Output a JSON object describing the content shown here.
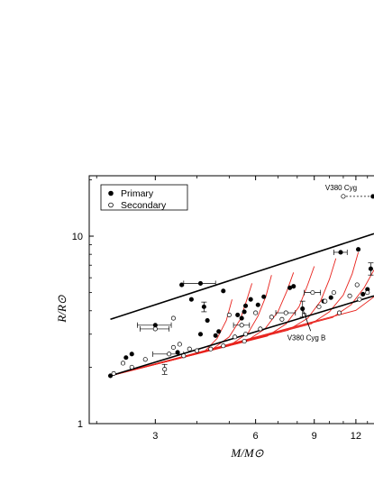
{
  "chart_data": {
    "type": "scatter",
    "x_scale": "log",
    "y_scale": "log",
    "xlabel": "M/M⊙",
    "ylabel": "R/R⊙",
    "xlim": [
      1.9,
      13.6
    ],
    "ylim": [
      1,
      21
    ],
    "x_ticks": [
      3,
      6,
      9,
      12
    ],
    "y_ticks": [
      1,
      10
    ],
    "legend": {
      "placement": "top-left",
      "entries": [
        "Primary",
        "Secondary"
      ]
    },
    "annotations": [
      {
        "text": "V380 Cyg B",
        "x": 9.0,
        "y": 3.05,
        "arrow_to": [
          8.3,
          4.1
        ]
      },
      {
        "text": "V380 Cyg",
        "x": 11.0,
        "y": 16.3
      }
    ],
    "boundary_curves": [
      {
        "name": "upper",
        "points": [
          [
            2.2,
            3.6
          ],
          [
            13.6,
            10.3
          ]
        ]
      },
      {
        "name": "lower",
        "points": [
          [
            2.2,
            1.8
          ],
          [
            13.6,
            4.8
          ]
        ]
      }
    ],
    "isochrones": [
      {
        "points": [
          [
            2.2,
            1.8
          ],
          [
            4.2,
            2.41
          ],
          [
            4.6,
            2.85
          ],
          [
            4.9,
            3.55
          ],
          [
            5.1,
            4.6
          ]
        ]
      },
      {
        "points": [
          [
            2.2,
            1.8
          ],
          [
            4.4,
            2.46
          ],
          [
            5.0,
            2.9
          ],
          [
            5.4,
            3.6
          ],
          [
            5.65,
            4.6
          ],
          [
            5.85,
            5.6
          ]
        ]
      },
      {
        "points": [
          [
            2.2,
            1.8
          ],
          [
            5.0,
            2.6
          ],
          [
            5.7,
            3.05
          ],
          [
            6.1,
            3.75
          ],
          [
            6.45,
            4.8
          ],
          [
            6.7,
            6.2
          ]
        ]
      },
      {
        "points": [
          [
            2.2,
            1.8
          ],
          [
            5.6,
            2.74
          ],
          [
            6.4,
            3.2
          ],
          [
            7.0,
            3.95
          ],
          [
            7.45,
            5.1
          ],
          [
            7.8,
            6.4
          ]
        ]
      },
      {
        "points": [
          [
            2.2,
            1.8
          ],
          [
            6.5,
            2.93
          ],
          [
            7.4,
            3.4
          ],
          [
            8.1,
            4.2
          ],
          [
            8.6,
            5.5
          ],
          [
            9.0,
            6.9
          ]
        ]
      },
      {
        "points": [
          [
            2.2,
            1.8
          ],
          [
            7.5,
            3.15
          ],
          [
            8.6,
            3.65
          ],
          [
            9.4,
            4.5
          ],
          [
            10.0,
            5.9
          ],
          [
            10.45,
            7.6
          ]
        ]
      },
      {
        "points": [
          [
            2.2,
            1.8
          ],
          [
            8.8,
            3.4
          ],
          [
            10.0,
            3.95
          ],
          [
            11.0,
            4.85
          ],
          [
            11.7,
            6.3
          ],
          [
            12.2,
            8.2
          ]
        ]
      },
      {
        "points": [
          [
            2.2,
            1.8
          ],
          [
            10.2,
            3.68
          ],
          [
            11.6,
            4.3
          ],
          [
            12.7,
            5.3
          ],
          [
            13.6,
            6.6
          ]
        ]
      },
      {
        "points": [
          [
            2.2,
            1.8
          ],
          [
            12.0,
            4.02
          ],
          [
            13.6,
            4.75
          ]
        ]
      }
    ],
    "series": [
      {
        "name": "Primary",
        "marker": "filled-circle",
        "points": [
          {
            "x": 2.2,
            "y": 1.8
          },
          {
            "x": 2.45,
            "y": 2.25
          },
          {
            "x": 2.55,
            "y": 2.35
          },
          {
            "x": 3.0,
            "y": 3.35,
            "xerr": 0.35
          },
          {
            "x": 3.5,
            "y": 2.4
          },
          {
            "x": 3.6,
            "y": 5.5
          },
          {
            "x": 3.85,
            "y": 4.6
          },
          {
            "x": 4.1,
            "y": 5.6,
            "xerr": 0.45
          },
          {
            "x": 4.2,
            "y": 4.2,
            "yerr": 0.25
          },
          {
            "x": 4.1,
            "y": 3.0
          },
          {
            "x": 4.3,
            "y": 3.55
          },
          {
            "x": 4.55,
            "y": 2.95
          },
          {
            "x": 4.65,
            "y": 3.1
          },
          {
            "x": 4.8,
            "y": 5.1
          },
          {
            "x": 5.3,
            "y": 3.8
          },
          {
            "x": 5.45,
            "y": 3.65
          },
          {
            "x": 5.55,
            "y": 3.95
          },
          {
            "x": 5.8,
            "y": 4.6
          },
          {
            "x": 5.6,
            "y": 4.25
          },
          {
            "x": 6.1,
            "y": 4.3
          },
          {
            "x": 6.35,
            "y": 4.75
          },
          {
            "x": 7.6,
            "y": 5.3
          },
          {
            "x": 7.8,
            "y": 5.4
          },
          {
            "x": 8.3,
            "y": 4.1,
            "yerr": 0.4
          },
          {
            "x": 9.6,
            "y": 4.5
          },
          {
            "x": 10.1,
            "y": 4.7
          },
          {
            "x": 10.8,
            "y": 8.2,
            "xerr": 0.5
          },
          {
            "x": 12.2,
            "y": 8.5
          },
          {
            "x": 13.3,
            "y": 6.7,
            "yerr": 0.5
          },
          {
            "x": 13.0,
            "y": 5.2
          },
          {
            "x": 12.6,
            "y": 4.9
          },
          {
            "x": 13.5,
            "y": 16.3
          }
        ]
      },
      {
        "name": "Secondary",
        "marker": "open-circle",
        "points": [
          {
            "x": 2.25,
            "y": 1.85
          },
          {
            "x": 2.4,
            "y": 2.1
          },
          {
            "x": 2.55,
            "y": 2.0
          },
          {
            "x": 2.8,
            "y": 2.2
          },
          {
            "x": 3.0,
            "y": 3.2,
            "xerr": 0.3
          },
          {
            "x": 3.3,
            "y": 2.35,
            "xerr": 0.35
          },
          {
            "x": 3.2,
            "y": 1.95,
            "yerr": 0.12
          },
          {
            "x": 3.4,
            "y": 2.55
          },
          {
            "x": 3.55,
            "y": 2.65
          },
          {
            "x": 3.65,
            "y": 2.3
          },
          {
            "x": 3.8,
            "y": 2.5
          },
          {
            "x": 4.0,
            "y": 2.45
          },
          {
            "x": 3.4,
            "y": 3.65
          },
          {
            "x": 4.4,
            "y": 2.5
          },
          {
            "x": 4.8,
            "y": 2.6
          },
          {
            "x": 5.0,
            "y": 3.8
          },
          {
            "x": 5.2,
            "y": 2.9
          },
          {
            "x": 5.55,
            "y": 2.75
          },
          {
            "x": 5.6,
            "y": 3.0
          },
          {
            "x": 5.45,
            "y": 3.35,
            "xerr": 0.3
          },
          {
            "x": 6.0,
            "y": 3.9
          },
          {
            "x": 6.2,
            "y": 3.2
          },
          {
            "x": 6.7,
            "y": 3.7
          },
          {
            "x": 7.2,
            "y": 3.6
          },
          {
            "x": 7.4,
            "y": 3.9,
            "xerr": 0.5
          },
          {
            "x": 8.4,
            "y": 3.8
          },
          {
            "x": 8.9,
            "y": 5.0,
            "xerr": 0.5
          },
          {
            "x": 9.3,
            "y": 4.2
          },
          {
            "x": 9.7,
            "y": 4.5
          },
          {
            "x": 10.3,
            "y": 5.0
          },
          {
            "x": 10.7,
            "y": 3.9
          },
          {
            "x": 11.5,
            "y": 4.8
          },
          {
            "x": 12.1,
            "y": 5.5
          },
          {
            "x": 12.3,
            "y": 4.6
          },
          {
            "x": 13.0,
            "y": 5.0
          },
          {
            "x": 11.0,
            "y": 16.3
          }
        ]
      }
    ]
  }
}
